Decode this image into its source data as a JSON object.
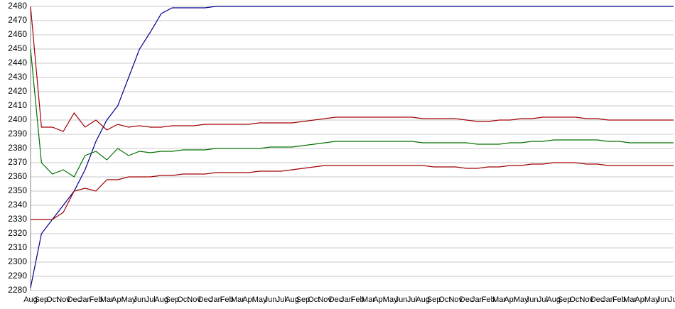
{
  "chart_data": {
    "type": "line",
    "categories": [
      "Aug",
      "Sep",
      "Oct",
      "Nov",
      "Dec",
      "Jan",
      "Feb",
      "Mar",
      "Apr",
      "May",
      "Jun",
      "Jul",
      "Aug",
      "Sep",
      "Oct",
      "Nov",
      "Dec",
      "Jan",
      "Feb",
      "Mar",
      "Apr",
      "May",
      "Jun",
      "Jul",
      "Aug",
      "Sep",
      "Oct",
      "Nov",
      "Dec",
      "Jan",
      "Feb",
      "Mar",
      "Apr",
      "May",
      "Jun",
      "Jul",
      "Aug",
      "Sep",
      "Oct",
      "Nov",
      "Dec",
      "Jan",
      "Feb",
      "Mar",
      "Apr",
      "May",
      "Jun",
      "Jul",
      "Aug",
      "Sep",
      "Oct",
      "Nov",
      "Dec",
      "Jan",
      "Feb",
      "Mar",
      "Apr",
      "May",
      "Jun",
      "Jul"
    ],
    "series": [
      {
        "color": "#00008b",
        "values": [
          2282,
          2320,
          2330,
          2340,
          2350,
          2365,
          2385,
          2400,
          2410,
          2430,
          2450,
          2462,
          2475,
          2479,
          2479,
          2479,
          2479,
          2480,
          2480,
          2480,
          2480,
          2480,
          2480,
          2480,
          2480,
          2480,
          2480,
          2480,
          2480,
          2480,
          2480,
          2480,
          2480,
          2480,
          2480,
          2480,
          2480,
          2480,
          2480,
          2480,
          2480,
          2480,
          2480,
          2480,
          2480,
          2480,
          2480,
          2480,
          2480,
          2480,
          2480,
          2480,
          2480,
          2480,
          2480,
          2480,
          2480,
          2480,
          2480,
          2480
        ]
      },
      {
        "color": "#a00000",
        "values": [
          2480,
          2395,
          2395,
          2392,
          2405,
          2395,
          2400,
          2393,
          2397,
          2395,
          2396,
          2395,
          2395,
          2396,
          2396,
          2396,
          2397,
          2397,
          2397,
          2397,
          2397,
          2398,
          2398,
          2398,
          2398,
          2399,
          2400,
          2401,
          2402,
          2402,
          2402,
          2402,
          2402,
          2402,
          2402,
          2402,
          2401,
          2401,
          2401,
          2401,
          2400,
          2399,
          2399,
          2400,
          2400,
          2401,
          2401,
          2402,
          2402,
          2402,
          2402,
          2401,
          2401,
          2400,
          2400,
          2400,
          2400,
          2400,
          2400,
          2400
        ]
      },
      {
        "color": "#007000",
        "values": [
          2450,
          2370,
          2362,
          2365,
          2360,
          2375,
          2378,
          2372,
          2380,
          2375,
          2378,
          2377,
          2378,
          2378,
          2379,
          2379,
          2379,
          2380,
          2380,
          2380,
          2380,
          2380,
          2381,
          2381,
          2381,
          2382,
          2383,
          2384,
          2385,
          2385,
          2385,
          2385,
          2385,
          2385,
          2385,
          2385,
          2384,
          2384,
          2384,
          2384,
          2384,
          2383,
          2383,
          2383,
          2384,
          2384,
          2385,
          2385,
          2386,
          2386,
          2386,
          2386,
          2386,
          2385,
          2385,
          2384,
          2384,
          2384,
          2384,
          2384
        ]
      },
      {
        "color": "#a00000",
        "values": [
          2330,
          2330,
          2330,
          2335,
          2350,
          2352,
          2350,
          2358,
          2358,
          2360,
          2360,
          2360,
          2361,
          2361,
          2362,
          2362,
          2362,
          2363,
          2363,
          2363,
          2363,
          2364,
          2364,
          2364,
          2365,
          2366,
          2367,
          2368,
          2368,
          2368,
          2368,
          2368,
          2368,
          2368,
          2368,
          2368,
          2368,
          2367,
          2367,
          2367,
          2366,
          2366,
          2367,
          2367,
          2368,
          2368,
          2369,
          2369,
          2370,
          2370,
          2370,
          2369,
          2369,
          2368,
          2368,
          2368,
          2368,
          2368,
          2368,
          2368
        ]
      }
    ],
    "ylim": [
      2280,
      2480
    ],
    "yticks": [
      2280,
      2290,
      2300,
      2310,
      2320,
      2330,
      2340,
      2350,
      2360,
      2370,
      2380,
      2390,
      2400,
      2410,
      2420,
      2430,
      2440,
      2450,
      2460,
      2470,
      2480
    ],
    "grid": true
  }
}
